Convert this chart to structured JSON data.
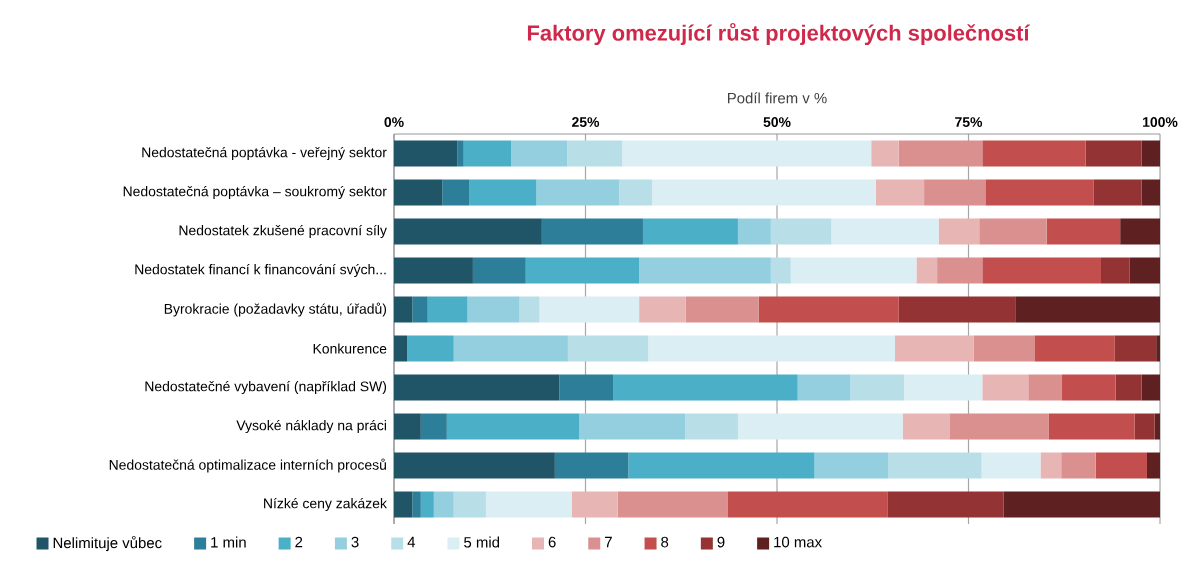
{
  "chart_data": {
    "type": "bar",
    "orientation": "horizontal",
    "stacked": true,
    "title": "Faktory omezující růst projektových společností",
    "xlabel": "Podíl firem v %",
    "categories": [
      "Nedostatečná poptávka - veřejný sektor",
      "Nedostatečná poptávka – soukromý sektor",
      "Nedostatek zkušené pracovní síly",
      "Nedostatek financí k financování svých...",
      "Byrokracie (požadavky státu, úřadů)",
      "Konkurence",
      "Nedostatečné vybavení (například SW)",
      "Vysoké náklady na práci",
      "Nedostatečná optimalizace interních procesů",
      "Nízké ceny zakázek"
    ],
    "series": [
      {
        "name": "Nelimituje vůbec",
        "color": "#1f5567",
        "values": [
          8.3,
          6.3,
          19.3,
          10.3,
          2.4,
          1.7,
          21.6,
          3.5,
          21.0,
          2.4
        ]
      },
      {
        "name": "1 min",
        "color": "#2d7f99",
        "values": [
          0.8,
          3.5,
          13.2,
          6.9,
          2.0,
          0,
          7.0,
          3.4,
          9.6,
          1.1
        ]
      },
      {
        "name": "2",
        "color": "#4bafc8",
        "values": [
          6.2,
          8.8,
          12.4,
          14.8,
          5.2,
          6.1,
          24.1,
          17.3,
          24.3,
          1.7
        ]
      },
      {
        "name": "3",
        "color": "#94cfe0",
        "values": [
          7.3,
          10.8,
          4.3,
          17.2,
          6.8,
          14.9,
          6.9,
          13.8,
          9.6,
          2.6
        ]
      },
      {
        "name": "4",
        "color": "#b8dfe8",
        "values": [
          7.2,
          4.3,
          7.9,
          2.6,
          2.6,
          10.5,
          7.0,
          6.9,
          12.2,
          4.2
        ]
      },
      {
        "name": "5 mid",
        "color": "#dbeef4",
        "values": [
          32.5,
          29.2,
          14.0,
          16.4,
          13.0,
          32.2,
          10.2,
          21.5,
          7.7,
          11.2
        ]
      },
      {
        "name": "6",
        "color": "#e8b5b5",
        "values": [
          3.6,
          6.3,
          5.3,
          2.7,
          6.1,
          10.3,
          6.0,
          6.1,
          2.7,
          6.0
        ]
      },
      {
        "name": "7",
        "color": "#db9090",
        "values": [
          10.9,
          8.0,
          8.8,
          5.9,
          9.5,
          7.9,
          4.4,
          13.0,
          4.5,
          14.4
        ]
      },
      {
        "name": "8",
        "color": "#c24f4d",
        "values": [
          13.5,
          14.1,
          9.6,
          15.5,
          18.3,
          10.5,
          7.0,
          11.2,
          6.7,
          20.8
        ]
      },
      {
        "name": "9",
        "color": "#933333",
        "values": [
          7.3,
          6.3,
          0,
          3.7,
          15.2,
          5.4,
          3.4,
          2.6,
          0,
          15.2
        ]
      },
      {
        "name": "10 max",
        "color": "#5e2020",
        "values": [
          2.4,
          2.4,
          5.2,
          4.0,
          18.9,
          0.5,
          2.4,
          0.7,
          1.7,
          20.4
        ]
      }
    ],
    "xlim": [
      0,
      100
    ],
    "xticks": [
      {
        "value": 0,
        "label": "0%"
      },
      {
        "value": 25,
        "label": "25%"
      },
      {
        "value": 50,
        "label": "50%"
      },
      {
        "value": 75,
        "label": "75%"
      },
      {
        "value": 100,
        "label": "100%"
      }
    ],
    "grid": "x",
    "legend": "bottom"
  }
}
